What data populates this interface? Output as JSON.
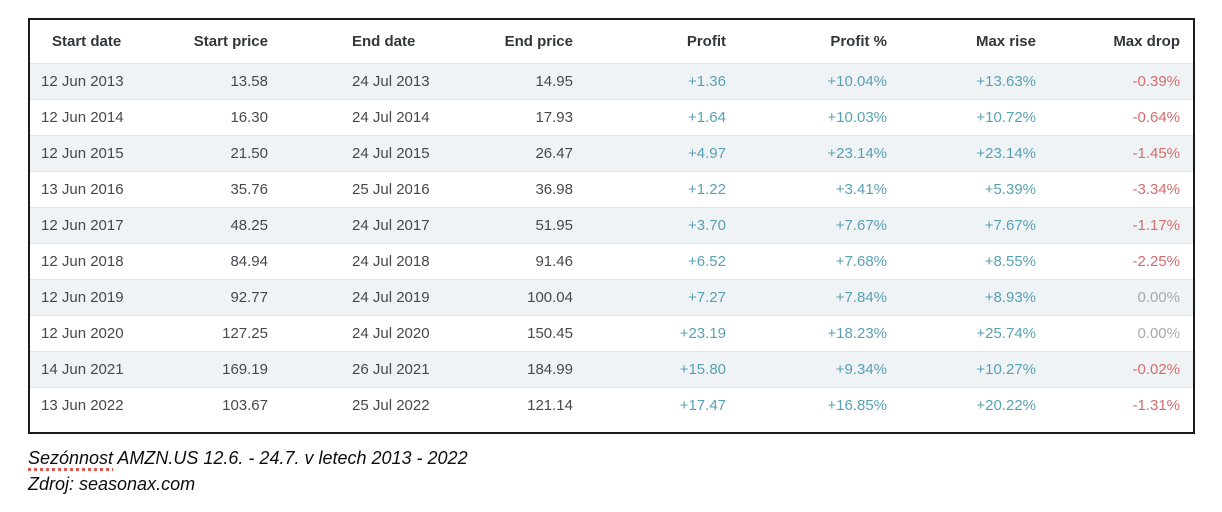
{
  "chart_data": {
    "type": "table",
    "title": "Sezónnost AMZN.US 12.6. - 24.7. v letech 2013 - 2022",
    "source": "Zdroj: seasonax.com",
    "columns": [
      "Start date",
      "Start price",
      "End date",
      "End price",
      "Profit",
      "Profit %",
      "Max rise",
      "Max drop"
    ],
    "rows": [
      [
        "12 Jun 2013",
        "13.58",
        "24 Jul 2013",
        "14.95",
        "+1.36",
        "+10.04%",
        "+13.63%",
        "-0.39%"
      ],
      [
        "12 Jun 2014",
        "16.30",
        "24 Jul 2014",
        "17.93",
        "+1.64",
        "+10.03%",
        "+10.72%",
        "-0.64%"
      ],
      [
        "12 Jun 2015",
        "21.50",
        "24 Jul 2015",
        "26.47",
        "+4.97",
        "+23.14%",
        "+23.14%",
        "-1.45%"
      ],
      [
        "13 Jun 2016",
        "35.76",
        "25 Jul 2016",
        "36.98",
        "+1.22",
        "+3.41%",
        "+5.39%",
        "-3.34%"
      ],
      [
        "12 Jun 2017",
        "48.25",
        "24 Jul 2017",
        "51.95",
        "+3.70",
        "+7.67%",
        "+7.67%",
        "-1.17%"
      ],
      [
        "12 Jun 2018",
        "84.94",
        "24 Jul 2018",
        "91.46",
        "+6.52",
        "+7.68%",
        "+8.55%",
        "-2.25%"
      ],
      [
        "12 Jun 2019",
        "92.77",
        "24 Jul 2019",
        "100.04",
        "+7.27",
        "+7.84%",
        "+8.93%",
        "0.00%"
      ],
      [
        "12 Jun 2020",
        "127.25",
        "24 Jul 2020",
        "150.45",
        "+23.19",
        "+18.23%",
        "+25.74%",
        "0.00%"
      ],
      [
        "14 Jun 2021",
        "169.19",
        "26 Jul 2021",
        "184.99",
        "+15.80",
        "+9.34%",
        "+10.27%",
        "-0.02%"
      ],
      [
        "13 Jun 2022",
        "103.67",
        "25 Jul 2022",
        "121.14",
        "+17.47",
        "+16.85%",
        "+20.22%",
        "-1.31%"
      ]
    ]
  },
  "caption": {
    "title_word": "Sezónnost",
    "title_rest": " AMZN.US 12.6. - 24.7. v letech 2013 - 2022",
    "source": "Zdroj: seasonax.com"
  },
  "colors": {
    "positive": "#58a1b3",
    "negative": "#d36c6c",
    "neutral_zero": "#a5abb0",
    "header_text": "#32373c",
    "body_text": "#45494e",
    "row_stripe": "#f0f3f5",
    "row_divider": "#dfe3e6",
    "table_border": "#1b1b1b",
    "misspell_underline": "#e4574d"
  }
}
